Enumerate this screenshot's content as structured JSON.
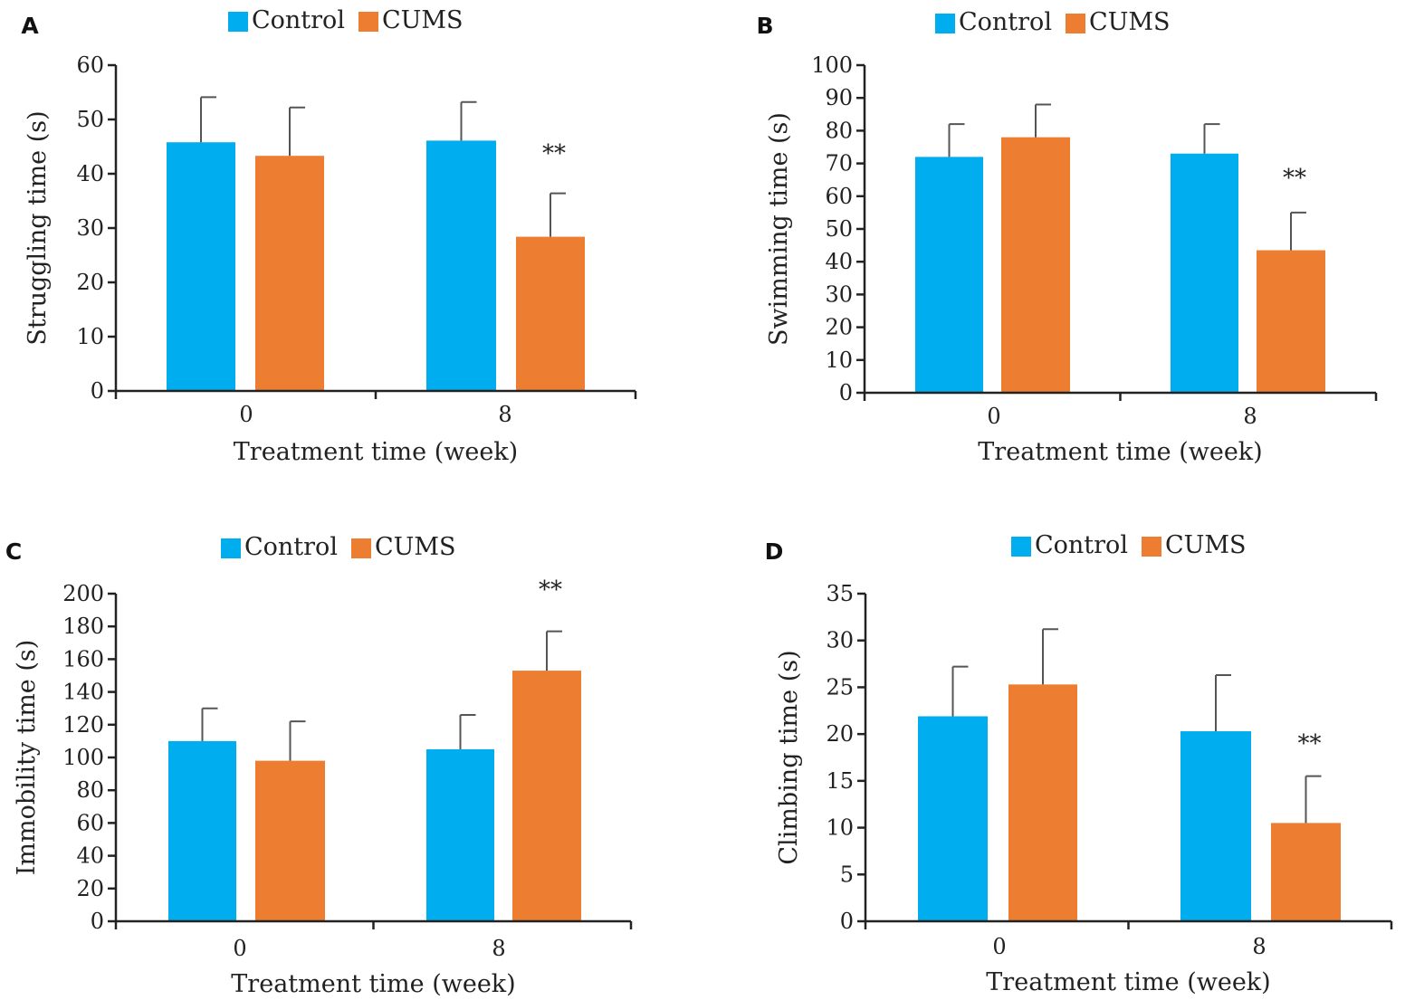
{
  "figure": {
    "legend": [
      {
        "name": "Control",
        "color": "#00aeef"
      },
      {
        "name": "CUMS",
        "color": "#ed7d31"
      }
    ]
  },
  "chart_data": [
    {
      "panel": "A",
      "type": "bar",
      "categories": [
        "0",
        "8"
      ],
      "xlabel": "Treatment time (week)",
      "ylabel": "Struggling time (s)",
      "ylim": [
        0,
        60
      ],
      "yticks": [
        0,
        10,
        20,
        30,
        40,
        50,
        60
      ],
      "series": [
        {
          "name": "Control",
          "color": "#00aeef",
          "values": [
            45.8,
            46.1
          ],
          "errors": [
            8.3,
            7.1
          ]
        },
        {
          "name": "CUMS",
          "color": "#ed7d31",
          "values": [
            43.3,
            28.4
          ],
          "errors": [
            8.9,
            8.0
          ]
        }
      ],
      "annotations": [
        {
          "series": "CUMS",
          "category": "8",
          "text": "**"
        }
      ],
      "legend": "top-center"
    },
    {
      "panel": "B",
      "type": "bar",
      "categories": [
        "0",
        "8"
      ],
      "xlabel": "Treatment time (week)",
      "ylabel": "Swimming time (s)",
      "ylim": [
        0,
        100
      ],
      "yticks": [
        0,
        10,
        20,
        30,
        40,
        50,
        60,
        70,
        80,
        90,
        100
      ],
      "series": [
        {
          "name": "Control",
          "color": "#00aeef",
          "values": [
            72,
            73
          ],
          "errors": [
            10,
            9
          ]
        },
        {
          "name": "CUMS",
          "color": "#ed7d31",
          "values": [
            78,
            43.5
          ],
          "errors": [
            10,
            11.5
          ]
        }
      ],
      "annotations": [
        {
          "series": "CUMS",
          "category": "8",
          "text": "**"
        }
      ],
      "legend": "top-center"
    },
    {
      "panel": "C",
      "type": "bar",
      "categories": [
        "0",
        "8"
      ],
      "xlabel": "Treatment time (week)",
      "ylabel": "Immobility time (s)",
      "ylim": [
        0,
        200
      ],
      "yticks": [
        0,
        20,
        40,
        60,
        80,
        100,
        120,
        140,
        160,
        180,
        200
      ],
      "series": [
        {
          "name": "Control",
          "color": "#00aeef",
          "values": [
            110,
            105
          ],
          "errors": [
            20,
            21
          ]
        },
        {
          "name": "CUMS",
          "color": "#ed7d31",
          "values": [
            98,
            153
          ],
          "errors": [
            24,
            24
          ]
        }
      ],
      "annotations": [
        {
          "series": "CUMS",
          "category": "8",
          "text": "**"
        }
      ],
      "legend": "top-center"
    },
    {
      "panel": "D",
      "type": "bar",
      "categories": [
        "0",
        "8"
      ],
      "xlabel": "Treatment time (week)",
      "ylabel": "Climbing time (s)",
      "ylim": [
        0,
        35
      ],
      "yticks": [
        0,
        5,
        10,
        15,
        20,
        25,
        30,
        35
      ],
      "series": [
        {
          "name": "Control",
          "color": "#00aeef",
          "values": [
            21.9,
            20.3
          ],
          "errors": [
            5.3,
            6.0
          ]
        },
        {
          "name": "CUMS",
          "color": "#ed7d31",
          "values": [
            25.3,
            10.5
          ],
          "errors": [
            5.9,
            5.0
          ]
        }
      ],
      "annotations": [
        {
          "series": "CUMS",
          "category": "8",
          "text": "**"
        }
      ],
      "legend": "top-center"
    }
  ]
}
